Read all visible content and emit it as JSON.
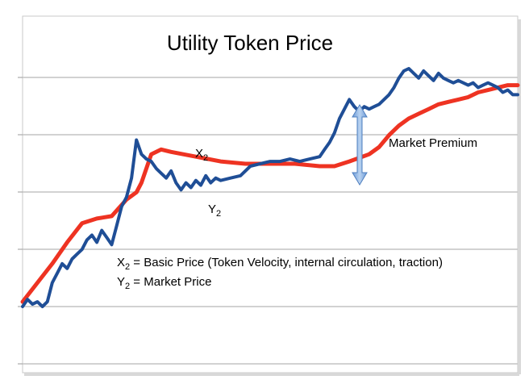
{
  "chart_data": {
    "type": "line",
    "title": "Utility Token Price",
    "grid": true,
    "yticks": 6,
    "xlim": [
      0,
      100
    ],
    "ylim": [
      0,
      100
    ],
    "series": [
      {
        "name": "X2",
        "color": "#ee3322",
        "x": [
          0,
          3,
          6,
          9,
          12,
          15,
          18,
          21,
          23,
          24,
          26,
          28,
          30,
          35,
          40,
          45,
          50,
          55,
          60,
          63,
          66,
          70,
          72,
          74,
          76,
          78,
          80,
          82,
          84,
          86,
          88,
          90,
          92,
          94,
          96,
          98,
          100
        ],
        "y": [
          2,
          10,
          18,
          27,
          35,
          37,
          38,
          45,
          48,
          52,
          64,
          66,
          65,
          63,
          61,
          60,
          60,
          60,
          59,
          59,
          61,
          64,
          67,
          72,
          76,
          79,
          81,
          83,
          85,
          86,
          87,
          88,
          90,
          91,
          92,
          93,
          93
        ]
      },
      {
        "name": "Y2",
        "color": "#1f4e96",
        "x": [
          0,
          1,
          2,
          3,
          4,
          5,
          6,
          7,
          8,
          9,
          10,
          11,
          12,
          13,
          14,
          15,
          16,
          17,
          18,
          19,
          20,
          21,
          22,
          23,
          24,
          25,
          26,
          27,
          28,
          29,
          30,
          31,
          32,
          33,
          34,
          35,
          36,
          37,
          38,
          39,
          40,
          42,
          44,
          46,
          48,
          50,
          52,
          54,
          56,
          58,
          60,
          61,
          62,
          63,
          64,
          65,
          66,
          67,
          68,
          69,
          70,
          71,
          72,
          73,
          74,
          75,
          76,
          77,
          78,
          79,
          80,
          81,
          82,
          83,
          84,
          85,
          86,
          87,
          88,
          89,
          90,
          91,
          92,
          93,
          94,
          95,
          96,
          97,
          98,
          99,
          100
        ],
        "y": [
          0,
          3,
          1,
          2,
          0,
          2,
          10,
          14,
          18,
          16,
          20,
          22,
          24,
          28,
          30,
          27,
          32,
          29,
          26,
          34,
          42,
          46,
          54,
          70,
          64,
          62,
          61,
          58,
          56,
          54,
          57,
          52,
          49,
          52,
          50,
          53,
          51,
          55,
          52,
          54,
          53,
          54,
          55,
          59,
          60,
          61,
          61,
          62,
          61,
          62,
          63,
          66,
          69,
          73,
          79,
          83,
          87,
          84,
          82,
          84,
          83,
          84,
          85,
          87,
          89,
          92,
          96,
          99,
          100,
          98,
          96,
          99,
          97,
          95,
          98,
          96,
          95,
          94,
          95,
          94,
          93,
          94,
          92,
          93,
          94,
          93,
          92,
          90,
          91,
          89,
          89
        ]
      }
    ],
    "annotations": {
      "x2_label": {
        "base": "X",
        "sub": "2"
      },
      "y2_label": {
        "base": "Y",
        "sub": "2"
      },
      "arrow_label": "Market Premium",
      "legend_line1_base": "X",
      "legend_line1_sub": "2",
      "legend_line1_text": " = Basic Price (Token Velocity, internal circulation, traction)",
      "legend_line2_base": "Y",
      "legend_line2_sub": "2",
      "legend_line2_text": " = Market Price",
      "arrow_color": "#8eb4e3"
    }
  }
}
